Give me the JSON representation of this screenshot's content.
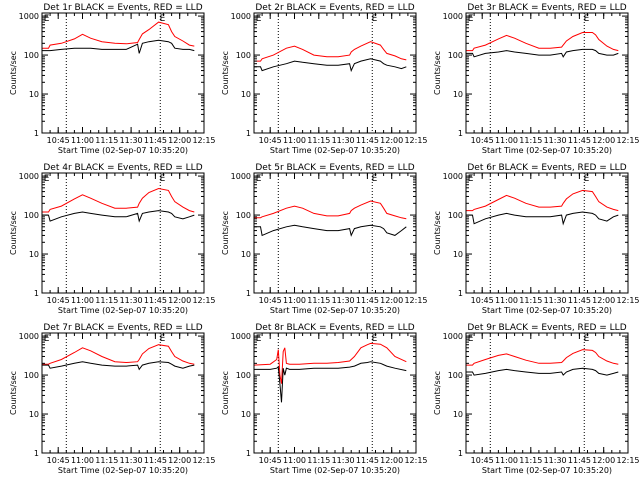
{
  "colors": {
    "events": "#000000",
    "lld": "#ff0000",
    "background": "#ffffff"
  },
  "axes": {
    "xlabel": "Start Time (02-Sep-07 10:35:20)",
    "ylabel": "Counts/sec",
    "xticks": [
      "10:45",
      "11:00",
      "11:15",
      "11:30",
      "11:45",
      "12:00",
      "12:15"
    ],
    "xtick_minutes": [
      10,
      25,
      40,
      55,
      70,
      85,
      100
    ],
    "xlim_minutes": [
      0,
      100
    ],
    "yscale": "log",
    "yticks": [
      "1",
      "10",
      "100",
      "1000"
    ],
    "yticks_values": [
      1,
      10,
      100,
      1000
    ],
    "ylim": [
      1,
      1200
    ],
    "dotted_lines_minutes": [
      15,
      73
    ],
    "markers": [
      "E",
      "E"
    ],
    "markers_minutes": [
      0.5,
      72
    ]
  },
  "chart_data": [
    {
      "type": "line",
      "title": "Det 1r BLACK = Events, RED = LLD",
      "series": [
        {
          "x": [
            0,
            4,
            5,
            12,
            20,
            25,
            30,
            37,
            45,
            52,
            59,
            60,
            62,
            66,
            72,
            78,
            80,
            82,
            87,
            91,
            94
          ],
          "values": [
            150,
            150,
            180,
            200,
            260,
            340,
            270,
            220,
            200,
            195,
            210,
            250,
            350,
            450,
            700,
            600,
            400,
            300,
            230,
            180,
            170
          ]
        },
        {
          "x": [
            0,
            4,
            5,
            12,
            20,
            25,
            30,
            37,
            45,
            52,
            59,
            60,
            62,
            66,
            72,
            78,
            80,
            82,
            87,
            91,
            94
          ],
          "values": [
            130,
            130,
            130,
            140,
            150,
            150,
            150,
            140,
            140,
            140,
            190,
            110,
            200,
            220,
            240,
            220,
            200,
            150,
            140,
            140,
            130
          ]
        }
      ]
    },
    {
      "type": "line",
      "title": "Det 2r BLACK = Events, RED = LLD",
      "series": [
        {
          "x": [
            0,
            4,
            5,
            12,
            20,
            25,
            30,
            37,
            45,
            52,
            59,
            60,
            62,
            66,
            72,
            78,
            80,
            82,
            87,
            91,
            94
          ],
          "values": [
            70,
            70,
            80,
            100,
            150,
            170,
            140,
            100,
            90,
            90,
            100,
            120,
            140,
            170,
            220,
            180,
            140,
            110,
            95,
            80,
            75
          ]
        },
        {
          "x": [
            0,
            4,
            5,
            12,
            20,
            25,
            30,
            37,
            45,
            52,
            59,
            60,
            62,
            66,
            72,
            78,
            80,
            82,
            87,
            91,
            94
          ],
          "values": [
            50,
            50,
            40,
            50,
            60,
            70,
            65,
            60,
            55,
            55,
            60,
            40,
            60,
            70,
            80,
            70,
            60,
            55,
            50,
            45,
            50
          ]
        }
      ]
    },
    {
      "type": "line",
      "title": "Det 3r BLACK = Events, RED = LLD",
      "series": [
        {
          "x": [
            0,
            4,
            5,
            12,
            20,
            25,
            30,
            37,
            45,
            52,
            59,
            60,
            62,
            66,
            72,
            78,
            80,
            82,
            87,
            91,
            94
          ],
          "values": [
            130,
            130,
            150,
            180,
            260,
            320,
            270,
            200,
            150,
            150,
            160,
            180,
            230,
            300,
            380,
            380,
            330,
            250,
            170,
            140,
            130
          ]
        },
        {
          "x": [
            0,
            4,
            5,
            12,
            20,
            25,
            30,
            37,
            45,
            52,
            59,
            60,
            62,
            66,
            72,
            78,
            80,
            82,
            87,
            91,
            94
          ],
          "values": [
            110,
            110,
            90,
            110,
            120,
            130,
            120,
            110,
            100,
            100,
            110,
            90,
            120,
            130,
            140,
            140,
            130,
            110,
            100,
            100,
            110
          ]
        }
      ]
    },
    {
      "type": "line",
      "title": "Det 4r BLACK = Events, RED = LLD",
      "series": [
        {
          "x": [
            0,
            4,
            5,
            12,
            20,
            25,
            30,
            37,
            45,
            52,
            59,
            60,
            62,
            66,
            72,
            78,
            80,
            82,
            87,
            91,
            94
          ],
          "values": [
            120,
            120,
            140,
            170,
            260,
            330,
            270,
            200,
            150,
            150,
            160,
            200,
            270,
            380,
            480,
            430,
            300,
            220,
            160,
            130,
            120
          ]
        },
        {
          "x": [
            0,
            4,
            5,
            12,
            20,
            25,
            30,
            37,
            45,
            52,
            59,
            60,
            62,
            66,
            72,
            78,
            80,
            82,
            87,
            91,
            94
          ],
          "values": [
            100,
            100,
            70,
            90,
            110,
            120,
            110,
            100,
            90,
            90,
            110,
            70,
            110,
            120,
            130,
            120,
            110,
            90,
            80,
            90,
            100
          ]
        }
      ]
    },
    {
      "type": "line",
      "title": "Det 5r BLACK = Events, RED = LLD",
      "series": [
        {
          "x": [
            0,
            4,
            5,
            12,
            20,
            25,
            30,
            37,
            45,
            52,
            59,
            60,
            62,
            66,
            72,
            78,
            80,
            82,
            87,
            91,
            94
          ],
          "values": [
            85,
            85,
            90,
            110,
            150,
            170,
            150,
            110,
            95,
            95,
            110,
            130,
            150,
            180,
            230,
            200,
            150,
            110,
            95,
            85,
            80
          ]
        },
        {
          "x": [
            0,
            4,
            5,
            12,
            20,
            25,
            30,
            37,
            45,
            52,
            59,
            60,
            62,
            66,
            72,
            78,
            80,
            82,
            87,
            91,
            94
          ],
          "values": [
            50,
            50,
            30,
            40,
            50,
            55,
            50,
            45,
            40,
            40,
            45,
            30,
            45,
            50,
            55,
            50,
            45,
            35,
            30,
            40,
            50
          ]
        }
      ]
    },
    {
      "type": "line",
      "title": "Det 6r BLACK = Events, RED = LLD",
      "series": [
        {
          "x": [
            0,
            4,
            5,
            12,
            20,
            25,
            30,
            37,
            45,
            52,
            59,
            60,
            62,
            66,
            72,
            78,
            80,
            82,
            87,
            91,
            94
          ],
          "values": [
            130,
            130,
            140,
            170,
            250,
            320,
            270,
            200,
            160,
            160,
            170,
            200,
            260,
            350,
            430,
            400,
            300,
            220,
            160,
            140,
            130
          ]
        },
        {
          "x": [
            0,
            4,
            5,
            12,
            20,
            25,
            30,
            37,
            45,
            52,
            59,
            60,
            62,
            66,
            72,
            78,
            80,
            82,
            87,
            91,
            94
          ],
          "values": [
            100,
            100,
            60,
            80,
            100,
            110,
            100,
            90,
            90,
            90,
            100,
            60,
            100,
            110,
            120,
            110,
            100,
            80,
            70,
            90,
            100
          ]
        }
      ]
    },
    {
      "type": "line",
      "title": "Det 7r BLACK = Events, RED = LLD",
      "series": [
        {
          "x": [
            0,
            4,
            5,
            12,
            20,
            25,
            30,
            37,
            45,
            52,
            59,
            60,
            62,
            66,
            72,
            78,
            80,
            82,
            87,
            91,
            94
          ],
          "values": [
            190,
            190,
            200,
            250,
            380,
            500,
            420,
            300,
            220,
            210,
            220,
            250,
            350,
            480,
            600,
            550,
            400,
            300,
            230,
            200,
            190
          ]
        },
        {
          "x": [
            0,
            4,
            5,
            12,
            20,
            25,
            30,
            37,
            45,
            52,
            59,
            60,
            62,
            66,
            72,
            78,
            80,
            82,
            87,
            91,
            94
          ],
          "values": [
            180,
            180,
            150,
            170,
            200,
            220,
            200,
            180,
            170,
            170,
            180,
            140,
            180,
            200,
            220,
            210,
            190,
            170,
            150,
            170,
            180
          ]
        }
      ]
    },
    {
      "type": "line",
      "title": "Det 8r BLACK = Events, RED = LLD",
      "series": [
        {
          "x": [
            0,
            10,
            14,
            15,
            16,
            17,
            18,
            19,
            20,
            22,
            28,
            37,
            45,
            52,
            59,
            62,
            66,
            70,
            72,
            78,
            82,
            87,
            94
          ],
          "values": [
            180,
            190,
            250,
            450,
            100,
            60,
            400,
            500,
            200,
            190,
            190,
            200,
            200,
            210,
            230,
            300,
            500,
            600,
            650,
            620,
            500,
            300,
            220
          ]
        },
        {
          "x": [
            0,
            10,
            14,
            15,
            16,
            17,
            18,
            19,
            20,
            22,
            28,
            37,
            45,
            52,
            59,
            62,
            66,
            70,
            72,
            78,
            82,
            87,
            94
          ],
          "values": [
            140,
            140,
            150,
            160,
            60,
            20,
            150,
            100,
            150,
            140,
            140,
            150,
            150,
            150,
            160,
            170,
            200,
            210,
            220,
            200,
            170,
            150,
            130
          ]
        }
      ]
    },
    {
      "type": "line",
      "title": "Det 9r BLACK = Events, RED = LLD",
      "series": [
        {
          "x": [
            0,
            4,
            5,
            12,
            20,
            25,
            30,
            37,
            45,
            52,
            59,
            60,
            62,
            66,
            72,
            78,
            80,
            82,
            87,
            91,
            94
          ],
          "values": [
            180,
            180,
            200,
            250,
            320,
            350,
            300,
            240,
            200,
            200,
            210,
            230,
            280,
            360,
            450,
            430,
            380,
            300,
            230,
            200,
            190
          ]
        },
        {
          "x": [
            0,
            4,
            5,
            12,
            20,
            25,
            30,
            37,
            45,
            52,
            59,
            60,
            62,
            66,
            72,
            78,
            80,
            82,
            87,
            91,
            94
          ],
          "values": [
            120,
            120,
            100,
            110,
            130,
            140,
            130,
            120,
            110,
            110,
            120,
            100,
            120,
            140,
            150,
            140,
            130,
            110,
            100,
            110,
            120
          ]
        }
      ]
    }
  ]
}
